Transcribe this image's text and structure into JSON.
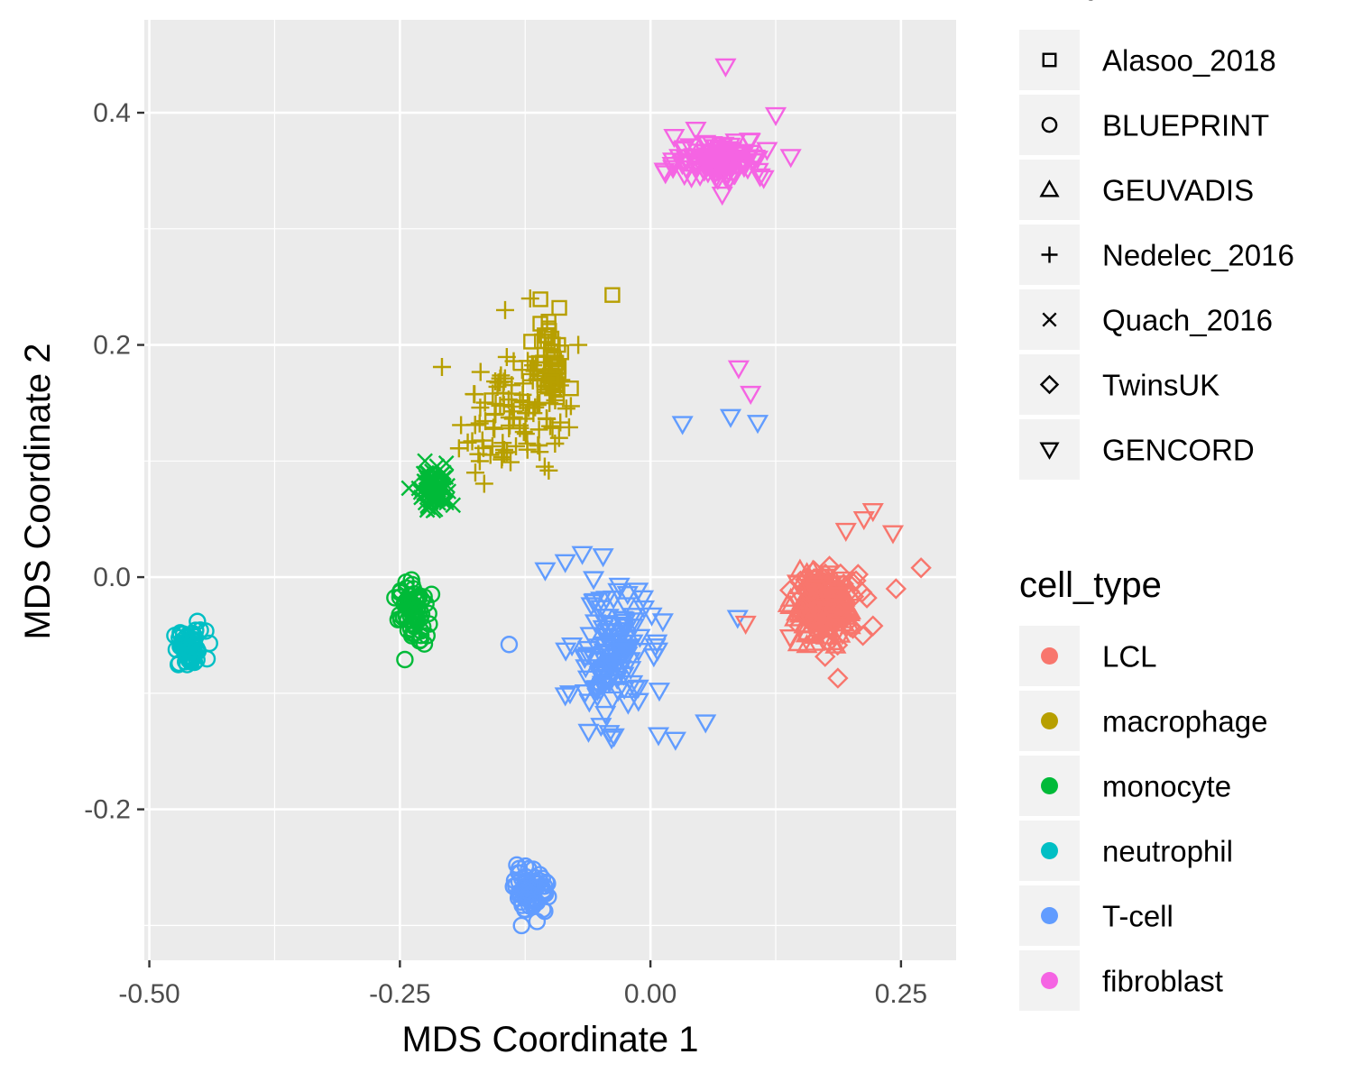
{
  "chart_data": {
    "type": "scatter",
    "xlabel": "MDS Coordinate 1",
    "ylabel": "MDS Coordinate 2",
    "xlim": [
      -0.505,
      0.305
    ],
    "ylim": [
      -0.33,
      0.48
    ],
    "x_ticks": [
      {
        "value": -0.5,
        "label": "-0.50"
      },
      {
        "value": -0.25,
        "label": "-0.25"
      },
      {
        "value": 0.0,
        "label": "0.00"
      },
      {
        "value": 0.25,
        "label": "0.25"
      }
    ],
    "y_ticks": [
      {
        "value": -0.2,
        "label": "-0.2"
      },
      {
        "value": 0.0,
        "label": "0.0"
      },
      {
        "value": 0.2,
        "label": "0.2"
      },
      {
        "value": 0.4,
        "label": "0.4"
      }
    ],
    "grid": true,
    "legend_placement": "right",
    "legends": [
      {
        "title": "study",
        "kind": "shape",
        "items": [
          {
            "label": "Alasoo_2018",
            "shape": "square"
          },
          {
            "label": "BLUEPRINT",
            "shape": "circle"
          },
          {
            "label": "GEUVADIS",
            "shape": "triangle"
          },
          {
            "label": "Nedelec_2016",
            "shape": "plus"
          },
          {
            "label": "Quach_2016",
            "shape": "cross"
          },
          {
            "label": "TwinsUK",
            "shape": "diamond"
          },
          {
            "label": "GENCORD",
            "shape": "triangle-down"
          }
        ]
      },
      {
        "title": "cell_type",
        "kind": "color",
        "items": [
          {
            "label": "LCL",
            "color": "#F8766D"
          },
          {
            "label": "macrophage",
            "color": "#B79F00"
          },
          {
            "label": "monocyte",
            "color": "#00BA38"
          },
          {
            "label": "neutrophil",
            "color": "#00BFC4"
          },
          {
            "label": "T-cell",
            "color": "#619CFF"
          },
          {
            "label": "fibroblast",
            "color": "#F564E3"
          }
        ]
      }
    ],
    "clusters": [
      {
        "cell_type": "neutrophil",
        "study": "BLUEPRINT",
        "center": [
          -0.46,
          -0.062
        ],
        "spread": [
          0.008,
          0.008
        ],
        "count": 60
      },
      {
        "cell_type": "monocyte",
        "study": "BLUEPRINT",
        "center": [
          -0.237,
          -0.03
        ],
        "spread": [
          0.007,
          0.013
        ],
        "count": 70
      },
      {
        "cell_type": "monocyte",
        "study": "Quach_2016",
        "center": [
          -0.215,
          0.078
        ],
        "spread": [
          0.008,
          0.01
        ],
        "count": 80
      },
      {
        "cell_type": "macrophage",
        "study": "Nedelec_2016",
        "center": [
          -0.14,
          0.14
        ],
        "spread": [
          0.025,
          0.025
        ],
        "count": 110
      },
      {
        "cell_type": "macrophage",
        "study": "Alasoo_2018",
        "center": [
          -0.1,
          0.185
        ],
        "spread": [
          0.008,
          0.02
        ],
        "count": 50
      },
      {
        "cell_type": "T-cell",
        "study": "GENCORD",
        "center": [
          -0.04,
          -0.065
        ],
        "spread": [
          0.018,
          0.028
        ],
        "count": 140
      },
      {
        "cell_type": "T-cell",
        "study": "BLUEPRINT",
        "center": [
          -0.118,
          -0.27
        ],
        "spread": [
          0.009,
          0.01
        ],
        "count": 70
      },
      {
        "cell_type": "LCL",
        "study": "GEUVADIS",
        "center": [
          0.17,
          -0.028
        ],
        "spread": [
          0.014,
          0.012
        ],
        "count": 160
      },
      {
        "cell_type": "LCL",
        "study": "TwinsUK",
        "center": [
          0.18,
          -0.022
        ],
        "spread": [
          0.017,
          0.014
        ],
        "count": 70
      },
      {
        "cell_type": "LCL",
        "study": "GENCORD",
        "center": [
          0.175,
          -0.02
        ],
        "spread": [
          0.015,
          0.018
        ],
        "count": 30
      },
      {
        "cell_type": "fibroblast",
        "study": "GENCORD",
        "center": [
          0.07,
          0.36
        ],
        "spread": [
          0.022,
          0.009
        ],
        "count": 130
      }
    ],
    "points": [
      {
        "x": 0.075,
        "y": 0.44,
        "cell_type": "fibroblast",
        "study": "GENCORD"
      },
      {
        "x": 0.125,
        "y": 0.398,
        "cell_type": "fibroblast",
        "study": "GENCORD"
      },
      {
        "x": 0.14,
        "y": 0.362,
        "cell_type": "fibroblast",
        "study": "GENCORD"
      },
      {
        "x": 0.015,
        "y": 0.348,
        "cell_type": "fibroblast",
        "study": "GENCORD"
      },
      {
        "x": 0.088,
        "y": 0.18,
        "cell_type": "fibroblast",
        "study": "GENCORD"
      },
      {
        "x": 0.1,
        "y": 0.158,
        "cell_type": "fibroblast",
        "study": "GENCORD"
      },
      {
        "x": 0.032,
        "y": 0.132,
        "cell_type": "T-cell",
        "study": "GENCORD"
      },
      {
        "x": 0.08,
        "y": 0.138,
        "cell_type": "T-cell",
        "study": "GENCORD"
      },
      {
        "x": 0.107,
        "y": 0.133,
        "cell_type": "T-cell",
        "study": "GENCORD"
      },
      {
        "x": 0.087,
        "y": -0.035,
        "cell_type": "T-cell",
        "study": "GENCORD"
      },
      {
        "x": -0.105,
        "y": 0.006,
        "cell_type": "T-cell",
        "study": "GENCORD"
      },
      {
        "x": -0.085,
        "y": 0.013,
        "cell_type": "T-cell",
        "study": "GENCORD"
      },
      {
        "x": -0.068,
        "y": 0.02,
        "cell_type": "T-cell",
        "study": "GENCORD"
      },
      {
        "x": 0.055,
        "y": -0.125,
        "cell_type": "T-cell",
        "study": "GENCORD"
      },
      {
        "x": 0.025,
        "y": -0.14,
        "cell_type": "T-cell",
        "study": "GENCORD"
      },
      {
        "x": 0.008,
        "y": -0.136,
        "cell_type": "T-cell",
        "study": "GENCORD"
      },
      {
        "x": -0.245,
        "y": -0.071,
        "cell_type": "monocyte",
        "study": "BLUEPRINT"
      },
      {
        "x": -0.197,
        "y": 0.062,
        "cell_type": "monocyte",
        "study": "Quach_2016"
      },
      {
        "x": -0.225,
        "y": 0.1,
        "cell_type": "monocyte",
        "study": "Quach_2016"
      },
      {
        "x": -0.141,
        "y": -0.058,
        "cell_type": "T-cell",
        "study": "BLUEPRINT"
      },
      {
        "x": -0.44,
        "y": -0.057,
        "cell_type": "neutrophil",
        "study": "BLUEPRINT"
      },
      {
        "x": -0.038,
        "y": 0.243,
        "cell_type": "macrophage",
        "study": "Alasoo_2018"
      },
      {
        "x": -0.12,
        "y": 0.24,
        "cell_type": "macrophage",
        "study": "Nedelec_2016"
      },
      {
        "x": -0.145,
        "y": 0.23,
        "cell_type": "macrophage",
        "study": "Nedelec_2016"
      },
      {
        "x": -0.072,
        "y": 0.2,
        "cell_type": "macrophage",
        "study": "Nedelec_2016"
      },
      {
        "x": -0.1,
        "y": 0.13,
        "cell_type": "macrophage",
        "study": "Nedelec_2016"
      },
      {
        "x": 0.27,
        "y": 0.008,
        "cell_type": "LCL",
        "study": "TwinsUK"
      },
      {
        "x": 0.245,
        "y": -0.01,
        "cell_type": "LCL",
        "study": "TwinsUK"
      },
      {
        "x": 0.222,
        "y": -0.042,
        "cell_type": "LCL",
        "study": "TwinsUK"
      },
      {
        "x": 0.187,
        "y": -0.087,
        "cell_type": "LCL",
        "study": "TwinsUK"
      },
      {
        "x": 0.222,
        "y": 0.057,
        "cell_type": "LCL",
        "study": "GENCORD"
      },
      {
        "x": 0.242,
        "y": 0.038,
        "cell_type": "LCL",
        "study": "GENCORD"
      },
      {
        "x": 0.195,
        "y": 0.04,
        "cell_type": "LCL",
        "study": "GENCORD"
      },
      {
        "x": 0.213,
        "y": 0.05,
        "cell_type": "LCL",
        "study": "GENCORD"
      },
      {
        "x": 0.095,
        "y": -0.04,
        "cell_type": "LCL",
        "study": "GENCORD"
      }
    ]
  }
}
